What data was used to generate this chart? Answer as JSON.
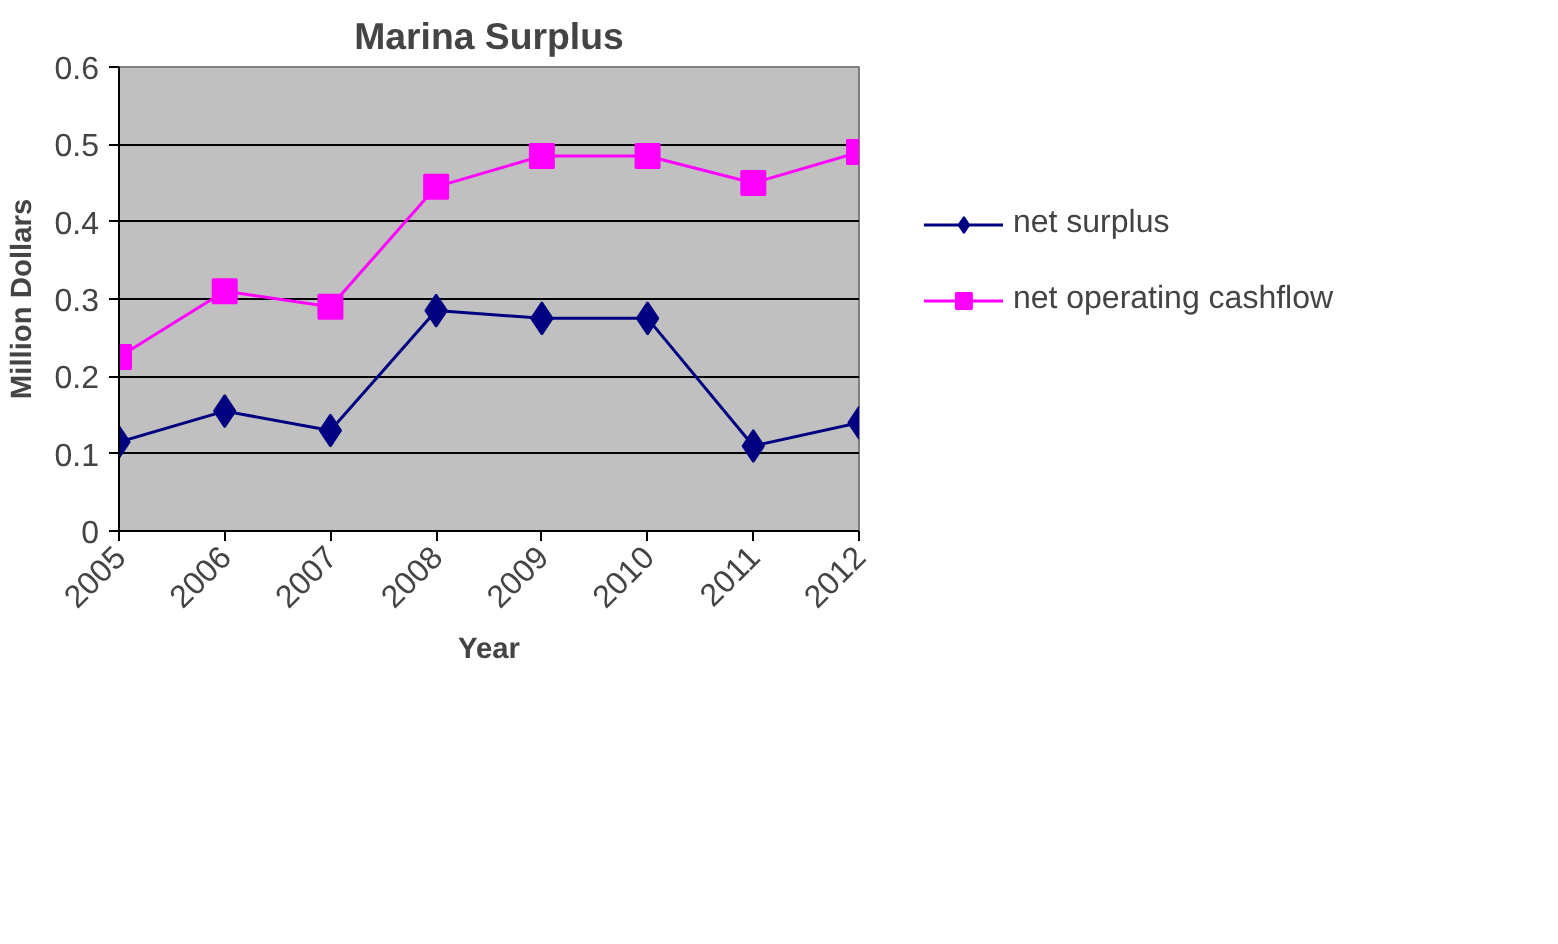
{
  "chart_data": {
    "type": "line",
    "title": "Marina Surplus",
    "xlabel": "Year",
    "ylabel": "Million Dollars",
    "categories": [
      "2005",
      "2006",
      "2007",
      "2008",
      "2009",
      "2010",
      "2011",
      "2012"
    ],
    "series": [
      {
        "name": "net surplus",
        "color": "#000080",
        "marker": "diamond",
        "values": [
          0.115,
          0.155,
          0.13,
          0.285,
          0.275,
          0.275,
          0.11,
          0.14
        ]
      },
      {
        "name": "net operating cashflow",
        "color": "#ff00ff",
        "marker": "square",
        "values": [
          0.225,
          0.31,
          0.29,
          0.445,
          0.485,
          0.485,
          0.45,
          0.49
        ]
      }
    ],
    "ylim": [
      0,
      0.6
    ],
    "yticks": [
      0,
      0.1,
      0.2,
      0.3,
      0.4,
      0.5,
      0.6
    ],
    "grid": "y",
    "legend": "right",
    "line_style": "solid"
  }
}
